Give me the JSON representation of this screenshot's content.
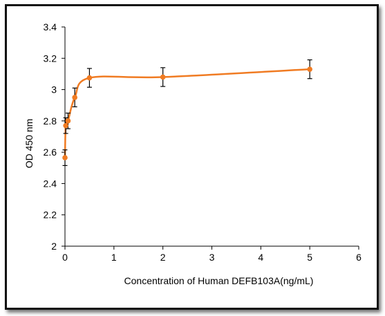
{
  "chart_data": {
    "type": "scatter",
    "title": "",
    "xlabel": "Concentration of Human DEFB103A(ng/mL)",
    "ylabel": "OD 450 nm",
    "xlim": [
      0,
      6
    ],
    "ylim": [
      2,
      3.4
    ],
    "x_ticks": [
      "0",
      "1",
      "2",
      "3",
      "4",
      "5",
      "6"
    ],
    "y_ticks": [
      "2",
      "2.2",
      "2.4",
      "2.6",
      "2.8",
      "3",
      "3.2",
      "3.4"
    ],
    "grid": false,
    "legend": "none",
    "series": [
      {
        "x": [
          0,
          0.0156,
          0.0625,
          0.2,
          0.5,
          2,
          5
        ],
        "y": [
          2.565,
          2.77,
          2.8,
          2.95,
          3.075,
          3.08,
          3.13
        ],
        "error": [
          0.05,
          0.05,
          0.05,
          0.06,
          0.06,
          0.06,
          0.06
        ],
        "smoothed_line": true
      }
    ],
    "colors": {
      "series": "#F07B22",
      "axis": "#000000",
      "error_bar": "#000000"
    }
  }
}
